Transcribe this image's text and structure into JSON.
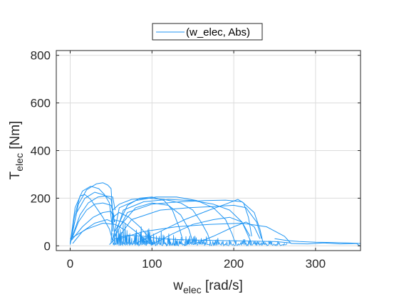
{
  "chart_data": {
    "type": "line",
    "title": "",
    "xlabel": {
      "main": "w",
      "sub": "elec",
      "unit": " [rad/s]"
    },
    "ylabel": {
      "main": "T",
      "sub": "elec",
      "unit": " [Nm]"
    },
    "xlim": [
      -17,
      355
    ],
    "ylim": [
      -20,
      820
    ],
    "xticks": [
      0,
      100,
      200,
      300
    ],
    "yticks": [
      0,
      200,
      400,
      600,
      800
    ],
    "grid": true,
    "legend": {
      "position": "top-center",
      "entries": [
        "(w_elec, Abs)"
      ]
    },
    "colors": {
      "series": "#2196F3",
      "axes": "#262626",
      "grid": "#dcdcdc"
    },
    "series": [
      {
        "name": "(w_elec, Abs)",
        "points": [
          [
            0,
            5
          ],
          [
            5,
            120
          ],
          [
            12,
            210
          ],
          [
            18,
            215
          ],
          [
            25,
            195
          ],
          [
            32,
            160
          ],
          [
            40,
            120
          ],
          [
            48,
            70
          ],
          [
            52,
            20
          ]
        ]
      },
      {
        "points": [
          [
            0,
            10
          ],
          [
            6,
            160
          ],
          [
            15,
            230
          ],
          [
            25,
            250
          ],
          [
            35,
            240
          ],
          [
            42,
            215
          ],
          [
            48,
            180
          ],
          [
            52,
            60
          ]
        ]
      },
      {
        "points": [
          [
            0,
            8
          ],
          [
            10,
            175
          ],
          [
            20,
            235
          ],
          [
            32,
            260
          ],
          [
            40,
            265
          ],
          [
            46,
            255
          ],
          [
            50,
            240
          ],
          [
            53,
            80
          ]
        ]
      },
      {
        "points": [
          [
            0,
            12
          ],
          [
            8,
            140
          ],
          [
            18,
            200
          ],
          [
            30,
            225
          ],
          [
            40,
            215
          ],
          [
            50,
            195
          ],
          [
            54,
            100
          ]
        ]
      },
      {
        "points": [
          [
            0,
            15
          ],
          [
            12,
            130
          ],
          [
            22,
            180
          ],
          [
            34,
            205
          ],
          [
            44,
            210
          ],
          [
            52,
            205
          ],
          [
            55,
            150
          ]
        ]
      },
      {
        "points": [
          [
            1,
            20
          ],
          [
            10,
            100
          ],
          [
            20,
            150
          ],
          [
            30,
            175
          ],
          [
            40,
            180
          ],
          [
            50,
            170
          ],
          [
            54,
            120
          ]
        ]
      },
      {
        "points": [
          [
            2,
            25
          ],
          [
            15,
            80
          ],
          [
            28,
            120
          ],
          [
            40,
            140
          ],
          [
            50,
            145
          ],
          [
            55,
            100
          ]
        ]
      },
      {
        "points": [
          [
            3,
            10
          ],
          [
            15,
            60
          ],
          [
            30,
            95
          ],
          [
            45,
            110
          ],
          [
            52,
            100
          ],
          [
            55,
            40
          ]
        ]
      },
      {
        "points": [
          [
            50,
            10
          ],
          [
            52,
            150
          ],
          [
            60,
            175
          ],
          [
            75,
            195
          ],
          [
            95,
            200
          ],
          [
            115,
            195
          ],
          [
            135,
            180
          ],
          [
            150,
            150
          ],
          [
            160,
            100
          ],
          [
            168,
            50
          ],
          [
            172,
            10
          ]
        ]
      },
      {
        "points": [
          [
            52,
            20
          ],
          [
            60,
            160
          ],
          [
            80,
            190
          ],
          [
            105,
            205
          ],
          [
            130,
            205
          ],
          [
            155,
            190
          ],
          [
            175,
            160
          ],
          [
            190,
            110
          ],
          [
            198,
            50
          ],
          [
            202,
            10
          ]
        ]
      },
      {
        "points": [
          [
            54,
            30
          ],
          [
            65,
            150
          ],
          [
            90,
            185
          ],
          [
            120,
            195
          ],
          [
            150,
            190
          ],
          [
            175,
            175
          ],
          [
            195,
            150
          ],
          [
            210,
            100
          ],
          [
            218,
            40
          ],
          [
            222,
            10
          ]
        ]
      },
      {
        "points": [
          [
            55,
            40
          ],
          [
            70,
            140
          ],
          [
            100,
            175
          ],
          [
            135,
            185
          ],
          [
            165,
            190
          ],
          [
            190,
            192
          ],
          [
            210,
            185
          ],
          [
            225,
            140
          ],
          [
            232,
            70
          ],
          [
            236,
            10
          ]
        ]
      },
      {
        "points": [
          [
            56,
            20
          ],
          [
            75,
            110
          ],
          [
            110,
            150
          ],
          [
            145,
            160
          ],
          [
            175,
            165
          ],
          [
            200,
            170
          ],
          [
            215,
            160
          ],
          [
            228,
            100
          ],
          [
            234,
            30
          ]
        ]
      },
      {
        "points": [
          [
            55,
            60
          ],
          [
            70,
            170
          ],
          [
            85,
            200
          ],
          [
            100,
            205
          ],
          [
            115,
            190
          ],
          [
            125,
            150
          ],
          [
            133,
            80
          ],
          [
            138,
            20
          ]
        ]
      },
      {
        "points": [
          [
            60,
            80
          ],
          [
            80,
            160
          ],
          [
            100,
            180
          ],
          [
            120,
            170
          ],
          [
            135,
            130
          ],
          [
            145,
            70
          ],
          [
            150,
            15
          ]
        ]
      },
      {
        "points": [
          [
            52,
            120
          ],
          [
            60,
            140
          ],
          [
            72,
            120
          ],
          [
            85,
            80
          ],
          [
            95,
            40
          ],
          [
            100,
            10
          ]
        ]
      },
      {
        "points": [
          [
            53,
            110
          ],
          [
            65,
            100
          ],
          [
            80,
            60
          ],
          [
            92,
            25
          ],
          [
            100,
            5
          ]
        ]
      },
      {
        "points": [
          [
            60,
            30
          ],
          [
            90,
            60
          ],
          [
            130,
            80
          ],
          [
            170,
            90
          ],
          [
            210,
            95
          ],
          [
            240,
            80
          ],
          [
            262,
            40
          ],
          [
            270,
            10
          ]
        ]
      },
      {
        "points": [
          [
            48,
            5
          ],
          [
            55,
            30
          ],
          [
            70,
            45
          ],
          [
            90,
            40
          ],
          [
            110,
            30
          ],
          [
            140,
            25
          ],
          [
            180,
            22
          ],
          [
            220,
            20
          ],
          [
            250,
            18
          ],
          [
            270,
            12
          ]
        ]
      },
      {
        "points": [
          [
            250,
            30
          ],
          [
            265,
            22
          ],
          [
            280,
            18
          ],
          [
            300,
            15
          ],
          [
            320,
            14
          ],
          [
            340,
            12
          ],
          [
            355,
            10
          ]
        ]
      },
      {
        "points": [
          [
            270,
            10
          ],
          [
            290,
            8
          ],
          [
            310,
            12
          ],
          [
            330,
            8
          ],
          [
            350,
            10
          ],
          [
            355,
            -2
          ]
        ]
      },
      {
        "points": [
          [
            0,
            30
          ],
          [
            20,
            70
          ],
          [
            40,
            95
          ],
          [
            55,
            90
          ],
          [
            65,
            70
          ]
        ]
      },
      {
        "points": [
          [
            80,
            10
          ],
          [
            110,
            60
          ],
          [
            140,
            110
          ],
          [
            170,
            150
          ],
          [
            190,
            175
          ],
          [
            205,
            195
          ],
          [
            212,
            180
          ],
          [
            218,
            120
          ],
          [
            222,
            40
          ]
        ]
      },
      {
        "points": [
          [
            150,
            5
          ],
          [
            175,
            40
          ],
          [
            200,
            80
          ],
          [
            215,
            100
          ],
          [
            225,
            80
          ],
          [
            232,
            30
          ]
        ]
      },
      {
        "points": [
          [
            100,
            5
          ],
          [
            125,
            50
          ],
          [
            150,
            90
          ],
          [
            175,
            110
          ],
          [
            195,
            120
          ],
          [
            210,
            100
          ],
          [
            220,
            40
          ]
        ]
      }
    ],
    "noise_bursts": [
      {
        "x_start": 52,
        "x_end": 145,
        "y_max": 110
      },
      {
        "x_start": 140,
        "x_end": 265,
        "y_max": 45
      }
    ]
  }
}
